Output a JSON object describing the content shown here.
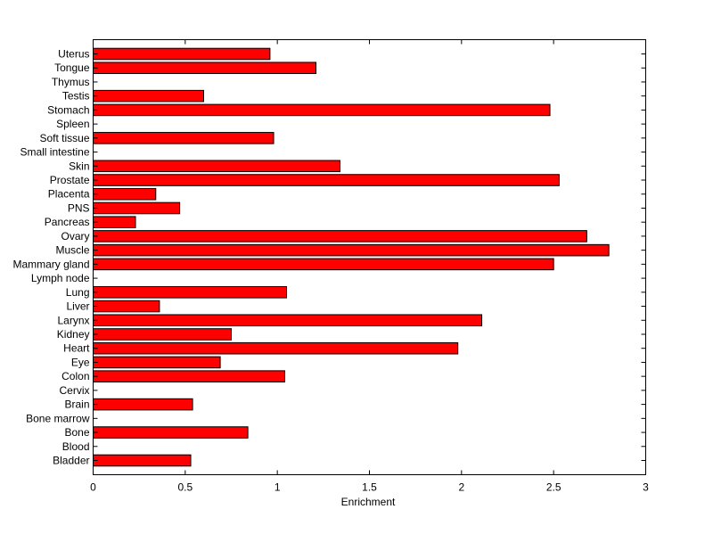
{
  "chart_data": {
    "type": "bar",
    "orientation": "horizontal",
    "title": "",
    "xlabel": "Enrichment",
    "ylabel": "",
    "xlim": [
      0,
      3
    ],
    "xticks": [
      "0",
      "0.5",
      "1",
      "1.5",
      "2",
      "2.5",
      "3"
    ],
    "grid": false,
    "legend": "none",
    "bar_color": "#ff0000",
    "categories": [
      "Uterus",
      "Tongue",
      "Thymus",
      "Testis",
      "Stomach",
      "Spleen",
      "Soft tissue",
      "Small intestine",
      "Skin",
      "Prostate",
      "Placenta",
      "PNS",
      "Pancreas",
      "Ovary",
      "Muscle",
      "Mammary gland",
      "Lymph node",
      "Lung",
      "Liver",
      "Larynx",
      "Kidney",
      "Heart",
      "Eye",
      "Colon",
      "Cervix",
      "Brain",
      "Bone marrow",
      "Bone",
      "Blood",
      "Bladder"
    ],
    "values": [
      0.96,
      1.21,
      0,
      0.6,
      2.48,
      0,
      0.98,
      0,
      1.34,
      2.53,
      0.34,
      0.47,
      0.23,
      2.68,
      2.8,
      2.5,
      0,
      1.05,
      0.36,
      2.11,
      0.75,
      1.98,
      0.69,
      1.04,
      0,
      0.54,
      0,
      0.84,
      0,
      0.53
    ]
  }
}
